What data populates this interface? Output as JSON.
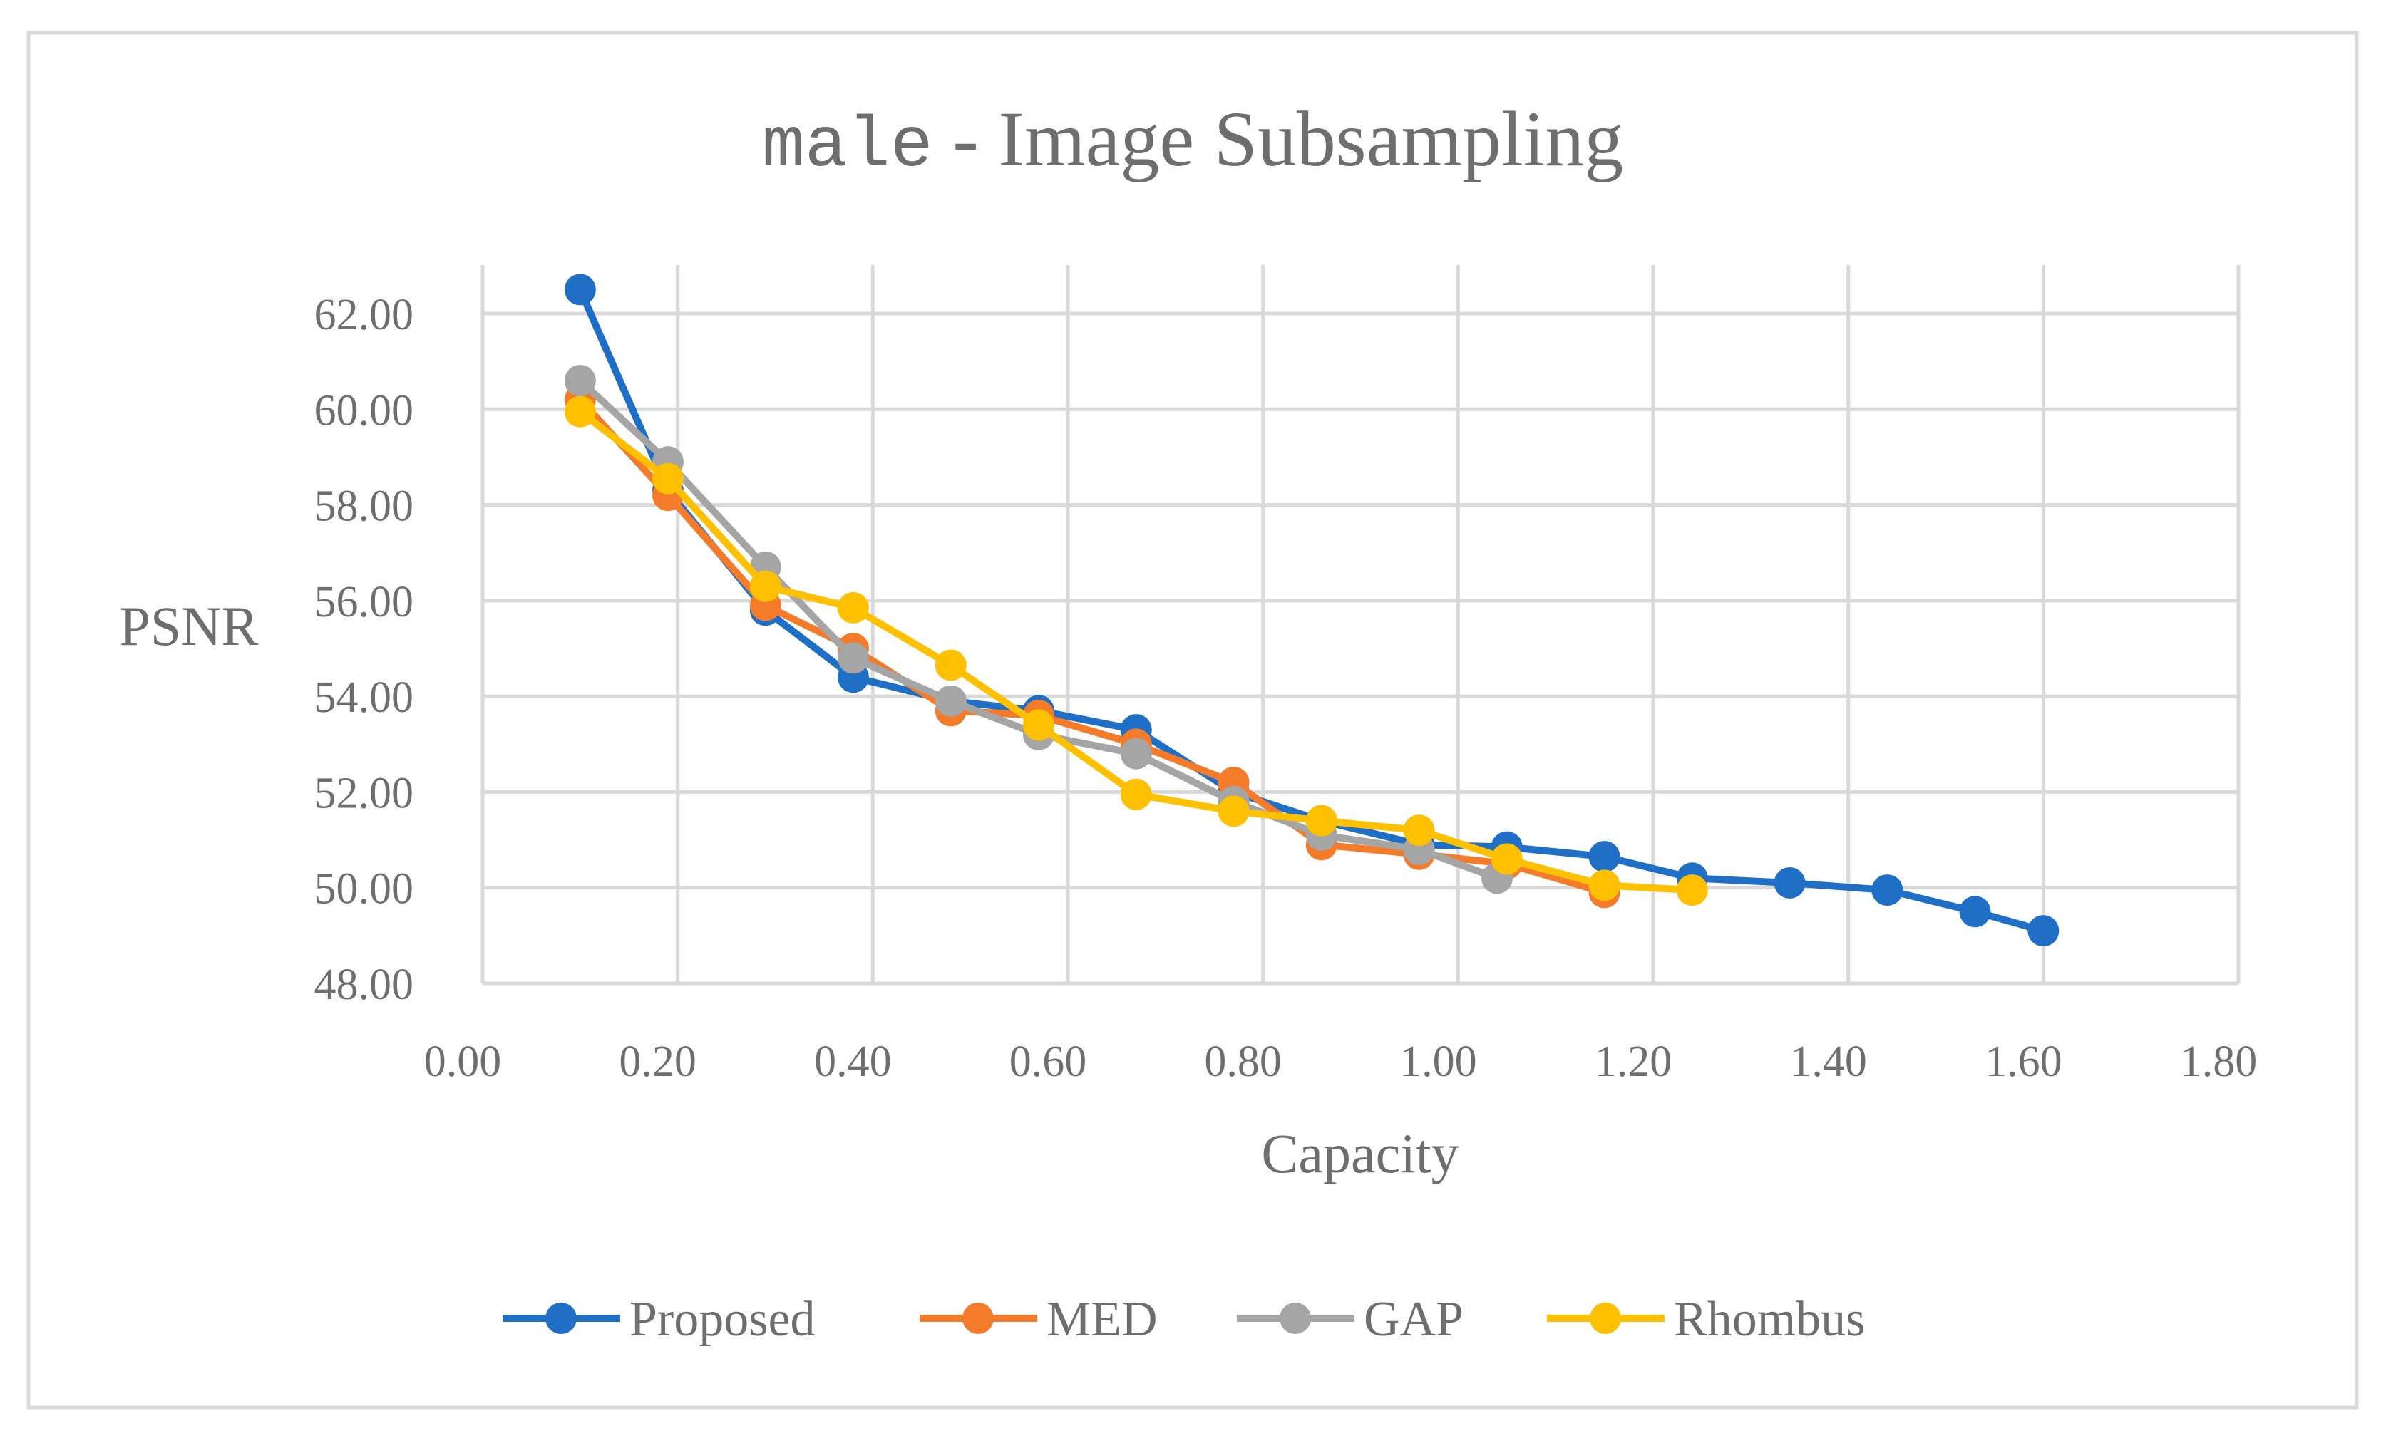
{
  "chart_data": {
    "type": "line",
    "title_mono": "male",
    "title_rest": " - Image Subsampling",
    "xlabel": "Capacity",
    "ylabel": "PSNR",
    "xlim": [
      0.0,
      1.8
    ],
    "ylim": [
      48.0,
      63.0
    ],
    "x_ticks": [
      0.0,
      0.2,
      0.4,
      0.6,
      0.8,
      1.0,
      1.2,
      1.4,
      1.6,
      1.8
    ],
    "y_ticks": [
      48.0,
      50.0,
      52.0,
      54.0,
      56.0,
      58.0,
      60.0,
      62.0
    ],
    "x_tick_labels": [
      "0.00",
      "0.20",
      "0.40",
      "0.60",
      "0.80",
      "1.00",
      "1.20",
      "1.40",
      "1.60",
      "1.80"
    ],
    "y_tick_labels": [
      "48.00",
      "50.00",
      "52.00",
      "54.00",
      "56.00",
      "58.00",
      "60.00",
      "62.00"
    ],
    "grid": true,
    "legend_position": "bottom",
    "series": [
      {
        "name": "Proposed",
        "color": "#1f6fc6",
        "x": [
          0.1,
          0.19,
          0.29,
          0.38,
          0.48,
          0.57,
          0.67,
          0.77,
          0.86,
          0.96,
          1.05,
          1.15,
          1.24,
          1.34,
          1.44,
          1.53,
          1.6
        ],
        "y": [
          62.5,
          58.3,
          55.8,
          54.4,
          53.9,
          53.7,
          53.3,
          52.0,
          51.4,
          50.9,
          50.85,
          50.65,
          50.2,
          50.1,
          49.95,
          49.5,
          49.1
        ]
      },
      {
        "name": "MED",
        "color": "#f47b2a",
        "x": [
          0.1,
          0.19,
          0.29,
          0.38,
          0.48,
          0.57,
          0.67,
          0.77,
          0.86,
          0.96,
          1.05,
          1.15
        ],
        "y": [
          60.2,
          58.2,
          55.9,
          55.0,
          53.7,
          53.6,
          53.0,
          52.2,
          50.9,
          50.7,
          50.5,
          49.9
        ]
      },
      {
        "name": "GAP",
        "color": "#a5a5a5",
        "x": [
          0.1,
          0.19,
          0.29,
          0.38,
          0.48,
          0.57,
          0.67,
          0.77,
          0.86,
          0.96,
          1.04
        ],
        "y": [
          60.6,
          58.9,
          56.7,
          54.8,
          53.9,
          53.2,
          52.8,
          51.8,
          51.1,
          50.8,
          50.2
        ]
      },
      {
        "name": "Rhombus",
        "color": "#ffc000",
        "x": [
          0.1,
          0.19,
          0.29,
          0.38,
          0.48,
          0.57,
          0.67,
          0.77,
          0.86,
          0.96,
          1.05,
          1.15,
          1.24
        ],
        "y": [
          59.95,
          58.55,
          56.3,
          55.85,
          54.65,
          53.4,
          51.95,
          51.6,
          51.4,
          51.2,
          50.6,
          50.05,
          49.95
        ]
      }
    ]
  }
}
